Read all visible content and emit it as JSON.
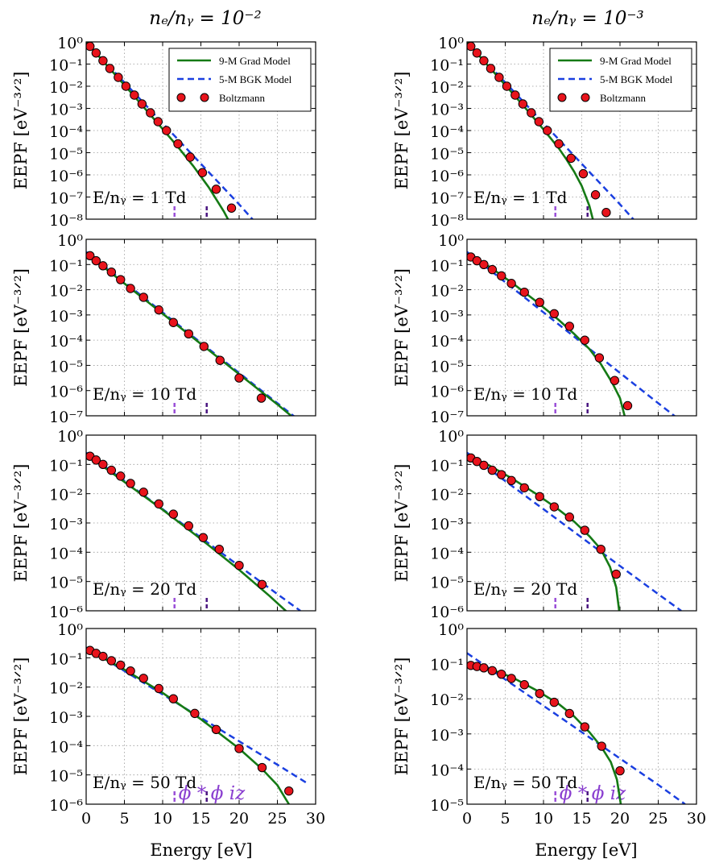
{
  "figure": {
    "col_titles": [
      "nₑ/nᵧ = 10⁻²",
      "nₑ/nᵧ = 10⁻³"
    ],
    "ylabel": "EEPF [eV⁻³ᐟ²]",
    "xlabel": "Energy [eV]",
    "legend": {
      "grad": "9-M Grad Model",
      "bgk": "5-M BGK Model",
      "boltz": "Boltzmann"
    },
    "markers": {
      "phi_star": "ϕ *",
      "phi_iz": "ϕ iz"
    }
  },
  "colors": {
    "grad": "#157a15",
    "bgk": "#1a3fe0",
    "boltz_fill": "#e8141c",
    "phi_star": "#9a4fd8",
    "phi_iz": "#4a1580",
    "grid": "#999999"
  },
  "chart_data": [
    {
      "type": "line",
      "row": 0,
      "col": 0,
      "label": "E/nᵧ = 1 Td",
      "xlim": [
        0,
        30
      ],
      "ylog": [
        -8,
        0
      ],
      "ytick_labels": [
        "10⁰",
        "10⁻¹",
        "10⁻²",
        "10⁻³",
        "10⁻⁴",
        "10⁻⁵",
        "10⁻⁶",
        "10⁻⁷",
        "10⁻⁸"
      ],
      "phi_star": 11.55,
      "phi_iz": 15.76,
      "show_phi_labels": false,
      "show_legend": true,
      "grad": [
        [
          0,
          0.0
        ],
        [
          2,
          -0.78
        ],
        [
          4,
          -1.56
        ],
        [
          6,
          -2.34
        ],
        [
          8,
          -3.13
        ],
        [
          10,
          -3.93
        ],
        [
          12,
          -4.74
        ],
        [
          14,
          -5.6
        ],
        [
          16,
          -6.55
        ],
        [
          18,
          -7.65
        ],
        [
          19,
          -8.3
        ]
      ],
      "bgk": [
        [
          0,
          0.0
        ],
        [
          5,
          -1.83
        ],
        [
          10,
          -3.67
        ],
        [
          15,
          -5.5
        ],
        [
          20,
          -7.33
        ],
        [
          22,
          -8.1
        ]
      ],
      "boltz": [
        [
          0.5,
          -0.2
        ],
        [
          1.3,
          -0.5
        ],
        [
          2.2,
          -0.85
        ],
        [
          3.1,
          -1.2
        ],
        [
          4.2,
          -1.6
        ],
        [
          5.2,
          -2.0
        ],
        [
          6.3,
          -2.4
        ],
        [
          7.3,
          -2.8
        ],
        [
          8.4,
          -3.2
        ],
        [
          9.4,
          -3.6
        ],
        [
          10.5,
          -4.0
        ],
        [
          12.0,
          -4.6
        ],
        [
          13.6,
          -5.2
        ],
        [
          15.2,
          -5.9
        ],
        [
          17.0,
          -6.65
        ],
        [
          19.0,
          -7.5
        ]
      ]
    },
    {
      "type": "line",
      "row": 0,
      "col": 1,
      "label": "E/nᵧ = 1 Td",
      "xlim": [
        0,
        30
      ],
      "ylog": [
        -8,
        0
      ],
      "ytick_labels": [
        "10⁰",
        "10⁻¹",
        "10⁻²",
        "10⁻³",
        "10⁻⁴",
        "10⁻⁵",
        "10⁻⁶",
        "10⁻⁷",
        "10⁻⁸"
      ],
      "phi_star": 11.55,
      "phi_iz": 15.76,
      "show_phi_labels": false,
      "show_legend": true,
      "grad": [
        [
          0,
          0.0
        ],
        [
          2,
          -0.78
        ],
        [
          4,
          -1.56
        ],
        [
          6,
          -2.34
        ],
        [
          8,
          -3.13
        ],
        [
          10,
          -3.95
        ],
        [
          12,
          -4.8
        ],
        [
          13,
          -5.3
        ],
        [
          14,
          -5.85
        ],
        [
          15,
          -6.5
        ],
        [
          16,
          -7.4
        ],
        [
          16.6,
          -8.2
        ]
      ],
      "bgk": [
        [
          0,
          0.0
        ],
        [
          5,
          -1.83
        ],
        [
          10,
          -3.67
        ],
        [
          15,
          -5.5
        ],
        [
          20,
          -7.33
        ],
        [
          22,
          -8.1
        ]
      ],
      "boltz": [
        [
          0.5,
          -0.2
        ],
        [
          1.3,
          -0.5
        ],
        [
          2.2,
          -0.85
        ],
        [
          3.1,
          -1.2
        ],
        [
          4.2,
          -1.6
        ],
        [
          5.2,
          -2.0
        ],
        [
          6.3,
          -2.4
        ],
        [
          7.3,
          -2.8
        ],
        [
          8.4,
          -3.2
        ],
        [
          9.4,
          -3.6
        ],
        [
          10.5,
          -4.0
        ],
        [
          12.0,
          -4.6
        ],
        [
          13.6,
          -5.25
        ],
        [
          15.2,
          -5.95
        ],
        [
          16.8,
          -6.9
        ],
        [
          18.2,
          -7.7
        ]
      ]
    },
    {
      "type": "line",
      "row": 1,
      "col": 0,
      "label": "E/nᵧ = 10 Td",
      "xlim": [
        0,
        30
      ],
      "ylog": [
        -7,
        0
      ],
      "ytick_labels": [
        "10⁰",
        "10⁻¹",
        "10⁻²",
        "10⁻³",
        "10⁻⁴",
        "10⁻⁵",
        "10⁻⁶",
        "10⁻⁷"
      ],
      "phi_star": 11.55,
      "phi_iz": 15.76,
      "show_phi_labels": false,
      "show_legend": false,
      "grad": [
        [
          0,
          -0.55
        ],
        [
          5,
          -1.75
        ],
        [
          10,
          -2.95
        ],
        [
          15,
          -4.15
        ],
        [
          20,
          -5.35
        ],
        [
          25,
          -6.55
        ],
        [
          26.8,
          -7.0
        ]
      ],
      "bgk": [
        [
          0,
          -0.5
        ],
        [
          5,
          -1.7
        ],
        [
          10,
          -2.9
        ],
        [
          15,
          -4.1
        ],
        [
          20,
          -5.3
        ],
        [
          25,
          -6.5
        ],
        [
          29,
          -7.45
        ]
      ],
      "boltz": [
        [
          0.5,
          -0.65
        ],
        [
          1.3,
          -0.85
        ],
        [
          2.2,
          -1.05
        ],
        [
          3.3,
          -1.3
        ],
        [
          4.5,
          -1.6
        ],
        [
          5.8,
          -1.95
        ],
        [
          7.5,
          -2.3
        ],
        [
          9.5,
          -2.8
        ],
        [
          11.4,
          -3.3
        ],
        [
          13.4,
          -3.75
        ],
        [
          15.4,
          -4.25
        ],
        [
          17.5,
          -4.8
        ],
        [
          20.0,
          -5.5
        ],
        [
          22.9,
          -6.3
        ]
      ]
    },
    {
      "type": "line",
      "row": 1,
      "col": 1,
      "label": "E/nᵧ = 10 Td",
      "xlim": [
        0,
        30
      ],
      "ylog": [
        -7,
        0
      ],
      "ytick_labels": [
        "10⁰",
        "10⁻¹",
        "10⁻²",
        "10⁻³",
        "10⁻⁴",
        "10⁻⁵",
        "10⁻⁶",
        "10⁻⁷"
      ],
      "phi_star": 11.55,
      "phi_iz": 15.76,
      "show_phi_labels": false,
      "show_legend": false,
      "grad": [
        [
          0,
          -0.6
        ],
        [
          3,
          -1.1
        ],
        [
          6,
          -1.75
        ],
        [
          9,
          -2.45
        ],
        [
          12,
          -3.2
        ],
        [
          14,
          -3.75
        ],
        [
          16,
          -4.35
        ],
        [
          17.5,
          -4.95
        ],
        [
          19,
          -5.7
        ],
        [
          20,
          -6.3
        ],
        [
          20.6,
          -7.0
        ]
      ],
      "bgk": [
        [
          0,
          -0.5
        ],
        [
          5,
          -1.7
        ],
        [
          10,
          -2.9
        ],
        [
          15,
          -4.1
        ],
        [
          20,
          -5.3
        ],
        [
          25,
          -6.5
        ],
        [
          29,
          -7.45
        ]
      ],
      "boltz": [
        [
          0.5,
          -0.7
        ],
        [
          1.3,
          -0.85
        ],
        [
          2.2,
          -1.0
        ],
        [
          3.3,
          -1.2
        ],
        [
          4.5,
          -1.45
        ],
        [
          5.8,
          -1.75
        ],
        [
          7.5,
          -2.1
        ],
        [
          9.5,
          -2.5
        ],
        [
          11.4,
          -2.95
        ],
        [
          13.4,
          -3.45
        ],
        [
          15.4,
          -4.0
        ],
        [
          17.3,
          -4.7
        ],
        [
          19.3,
          -5.6
        ],
        [
          21.0,
          -6.6
        ]
      ]
    },
    {
      "type": "line",
      "row": 2,
      "col": 0,
      "label": "E/nᵧ = 20 Td",
      "xlim": [
        0,
        30
      ],
      "ylog": [
        -6,
        0
      ],
      "ytick_labels": [
        "10⁰",
        "10⁻¹",
        "10⁻²",
        "10⁻³",
        "10⁻⁴",
        "10⁻⁵",
        "10⁻⁶"
      ],
      "phi_star": 11.55,
      "phi_iz": 15.76,
      "show_phi_labels": false,
      "show_legend": false,
      "grad": [
        [
          0,
          -0.65
        ],
        [
          5,
          -1.6
        ],
        [
          10,
          -2.55
        ],
        [
          15,
          -3.55
        ],
        [
          20,
          -4.6
        ],
        [
          24,
          -5.5
        ],
        [
          26.5,
          -6.1
        ]
      ],
      "bgk": [
        [
          0,
          -0.6
        ],
        [
          5,
          -1.57
        ],
        [
          10,
          -2.53
        ],
        [
          15,
          -3.5
        ],
        [
          20,
          -4.47
        ],
        [
          25,
          -5.43
        ],
        [
          28,
          -6.0
        ]
      ],
      "boltz": [
        [
          0.5,
          -0.72
        ],
        [
          1.3,
          -0.85
        ],
        [
          2.2,
          -1.0
        ],
        [
          3.3,
          -1.2
        ],
        [
          4.5,
          -1.4
        ],
        [
          5.8,
          -1.65
        ],
        [
          7.5,
          -1.95
        ],
        [
          9.5,
          -2.35
        ],
        [
          11.4,
          -2.7
        ],
        [
          13.4,
          -3.1
        ],
        [
          15.3,
          -3.5
        ],
        [
          17.4,
          -3.9
        ],
        [
          20.0,
          -4.45
        ],
        [
          23.0,
          -5.1
        ]
      ]
    },
    {
      "type": "line",
      "row": 2,
      "col": 1,
      "label": "E/nᵧ = 20 Td",
      "xlim": [
        0,
        30
      ],
      "ylog": [
        -6,
        0
      ],
      "ytick_labels": [
        "10⁰",
        "10⁻¹",
        "10⁻²",
        "10⁻³",
        "10⁻⁴",
        "10⁻⁵",
        "10⁻⁶"
      ],
      "phi_star": 11.55,
      "phi_iz": 15.76,
      "show_phi_labels": false,
      "show_legend": false,
      "grad": [
        [
          0,
          -0.7
        ],
        [
          3,
          -1.05
        ],
        [
          6,
          -1.5
        ],
        [
          9,
          -2.0
        ],
        [
          12,
          -2.55
        ],
        [
          14,
          -2.95
        ],
        [
          16,
          -3.45
        ],
        [
          17.5,
          -3.9
        ],
        [
          18.7,
          -4.5
        ],
        [
          19.5,
          -5.2
        ],
        [
          19.9,
          -6.0
        ]
      ],
      "bgk": [
        [
          0,
          -0.6
        ],
        [
          5,
          -1.57
        ],
        [
          10,
          -2.53
        ],
        [
          15,
          -3.5
        ],
        [
          20,
          -4.47
        ],
        [
          25,
          -5.43
        ],
        [
          28,
          -6.0
        ]
      ],
      "boltz": [
        [
          0.5,
          -0.78
        ],
        [
          1.3,
          -0.9
        ],
        [
          2.2,
          -1.03
        ],
        [
          3.3,
          -1.2
        ],
        [
          4.5,
          -1.35
        ],
        [
          5.8,
          -1.55
        ],
        [
          7.5,
          -1.8
        ],
        [
          9.5,
          -2.1
        ],
        [
          11.4,
          -2.45
        ],
        [
          13.4,
          -2.8
        ],
        [
          15.4,
          -3.25
        ],
        [
          17.5,
          -3.9
        ],
        [
          19.5,
          -4.75
        ]
      ]
    },
    {
      "type": "line",
      "row": 3,
      "col": 0,
      "label": "E/nᵧ = 50 Td",
      "xlim": [
        0,
        30
      ],
      "ylog": [
        -6,
        0
      ],
      "ytick_labels": [
        "10⁰",
        "10⁻¹",
        "10⁻²",
        "10⁻³",
        "10⁻⁴",
        "10⁻⁵",
        "10⁻⁶"
      ],
      "phi_star": 11.55,
      "phi_iz": 15.76,
      "show_phi_labels": true,
      "show_legend": false,
      "grad": [
        [
          0,
          -0.7
        ],
        [
          5,
          -1.4
        ],
        [
          10,
          -2.2
        ],
        [
          15,
          -3.1
        ],
        [
          20,
          -4.1
        ],
        [
          23,
          -4.8
        ],
        [
          25,
          -5.35
        ],
        [
          26.5,
          -6.0
        ]
      ],
      "bgk": [
        [
          0,
          -0.65
        ],
        [
          5,
          -1.45
        ],
        [
          10,
          -2.25
        ],
        [
          15,
          -3.05
        ],
        [
          20,
          -3.85
        ],
        [
          25,
          -4.65
        ],
        [
          29,
          -5.3
        ]
      ],
      "boltz": [
        [
          0.5,
          -0.75
        ],
        [
          1.3,
          -0.85
        ],
        [
          2.2,
          -0.95
        ],
        [
          3.3,
          -1.1
        ],
        [
          4.5,
          -1.25
        ],
        [
          5.8,
          -1.45
        ],
        [
          7.5,
          -1.7
        ],
        [
          9.5,
          -2.05
        ],
        [
          11.4,
          -2.4
        ],
        [
          14.2,
          -2.9
        ],
        [
          17.0,
          -3.45
        ],
        [
          20.0,
          -4.1
        ],
        [
          23.0,
          -4.75
        ],
        [
          26.5,
          -5.55
        ]
      ]
    },
    {
      "type": "line",
      "row": 3,
      "col": 1,
      "label": "E/nᵧ = 50 Td",
      "xlim": [
        0,
        30
      ],
      "ylog": [
        -5,
        0
      ],
      "ytick_labels": [
        "10⁰",
        "10⁻¹",
        "10⁻²",
        "10⁻³",
        "10⁻⁴",
        "10⁻⁵"
      ],
      "phi_star": 11.55,
      "phi_iz": 15.76,
      "show_phi_labels": true,
      "show_legend": false,
      "grad": [
        [
          0,
          -1.0
        ],
        [
          3,
          -1.15
        ],
        [
          6,
          -1.4
        ],
        [
          9,
          -1.75
        ],
        [
          12,
          -2.15
        ],
        [
          14,
          -2.5
        ],
        [
          16,
          -2.95
        ],
        [
          17.5,
          -3.35
        ],
        [
          18.8,
          -3.8
        ],
        [
          19.6,
          -4.3
        ],
        [
          20.1,
          -5.0
        ]
      ],
      "bgk": [
        [
          0,
          -0.7
        ],
        [
          5,
          -1.45
        ],
        [
          10,
          -2.2
        ],
        [
          15,
          -2.95
        ],
        [
          20,
          -3.7
        ],
        [
          25,
          -4.45
        ],
        [
          28.5,
          -5.0
        ]
      ],
      "boltz": [
        [
          0.5,
          -1.05
        ],
        [
          1.3,
          -1.08
        ],
        [
          2.2,
          -1.12
        ],
        [
          3.3,
          -1.2
        ],
        [
          4.5,
          -1.3
        ],
        [
          5.8,
          -1.42
        ],
        [
          7.5,
          -1.6
        ],
        [
          9.5,
          -1.85
        ],
        [
          11.4,
          -2.1
        ],
        [
          13.4,
          -2.42
        ],
        [
          15.4,
          -2.8
        ],
        [
          17.6,
          -3.35
        ],
        [
          20.0,
          -4.05
        ]
      ]
    }
  ]
}
